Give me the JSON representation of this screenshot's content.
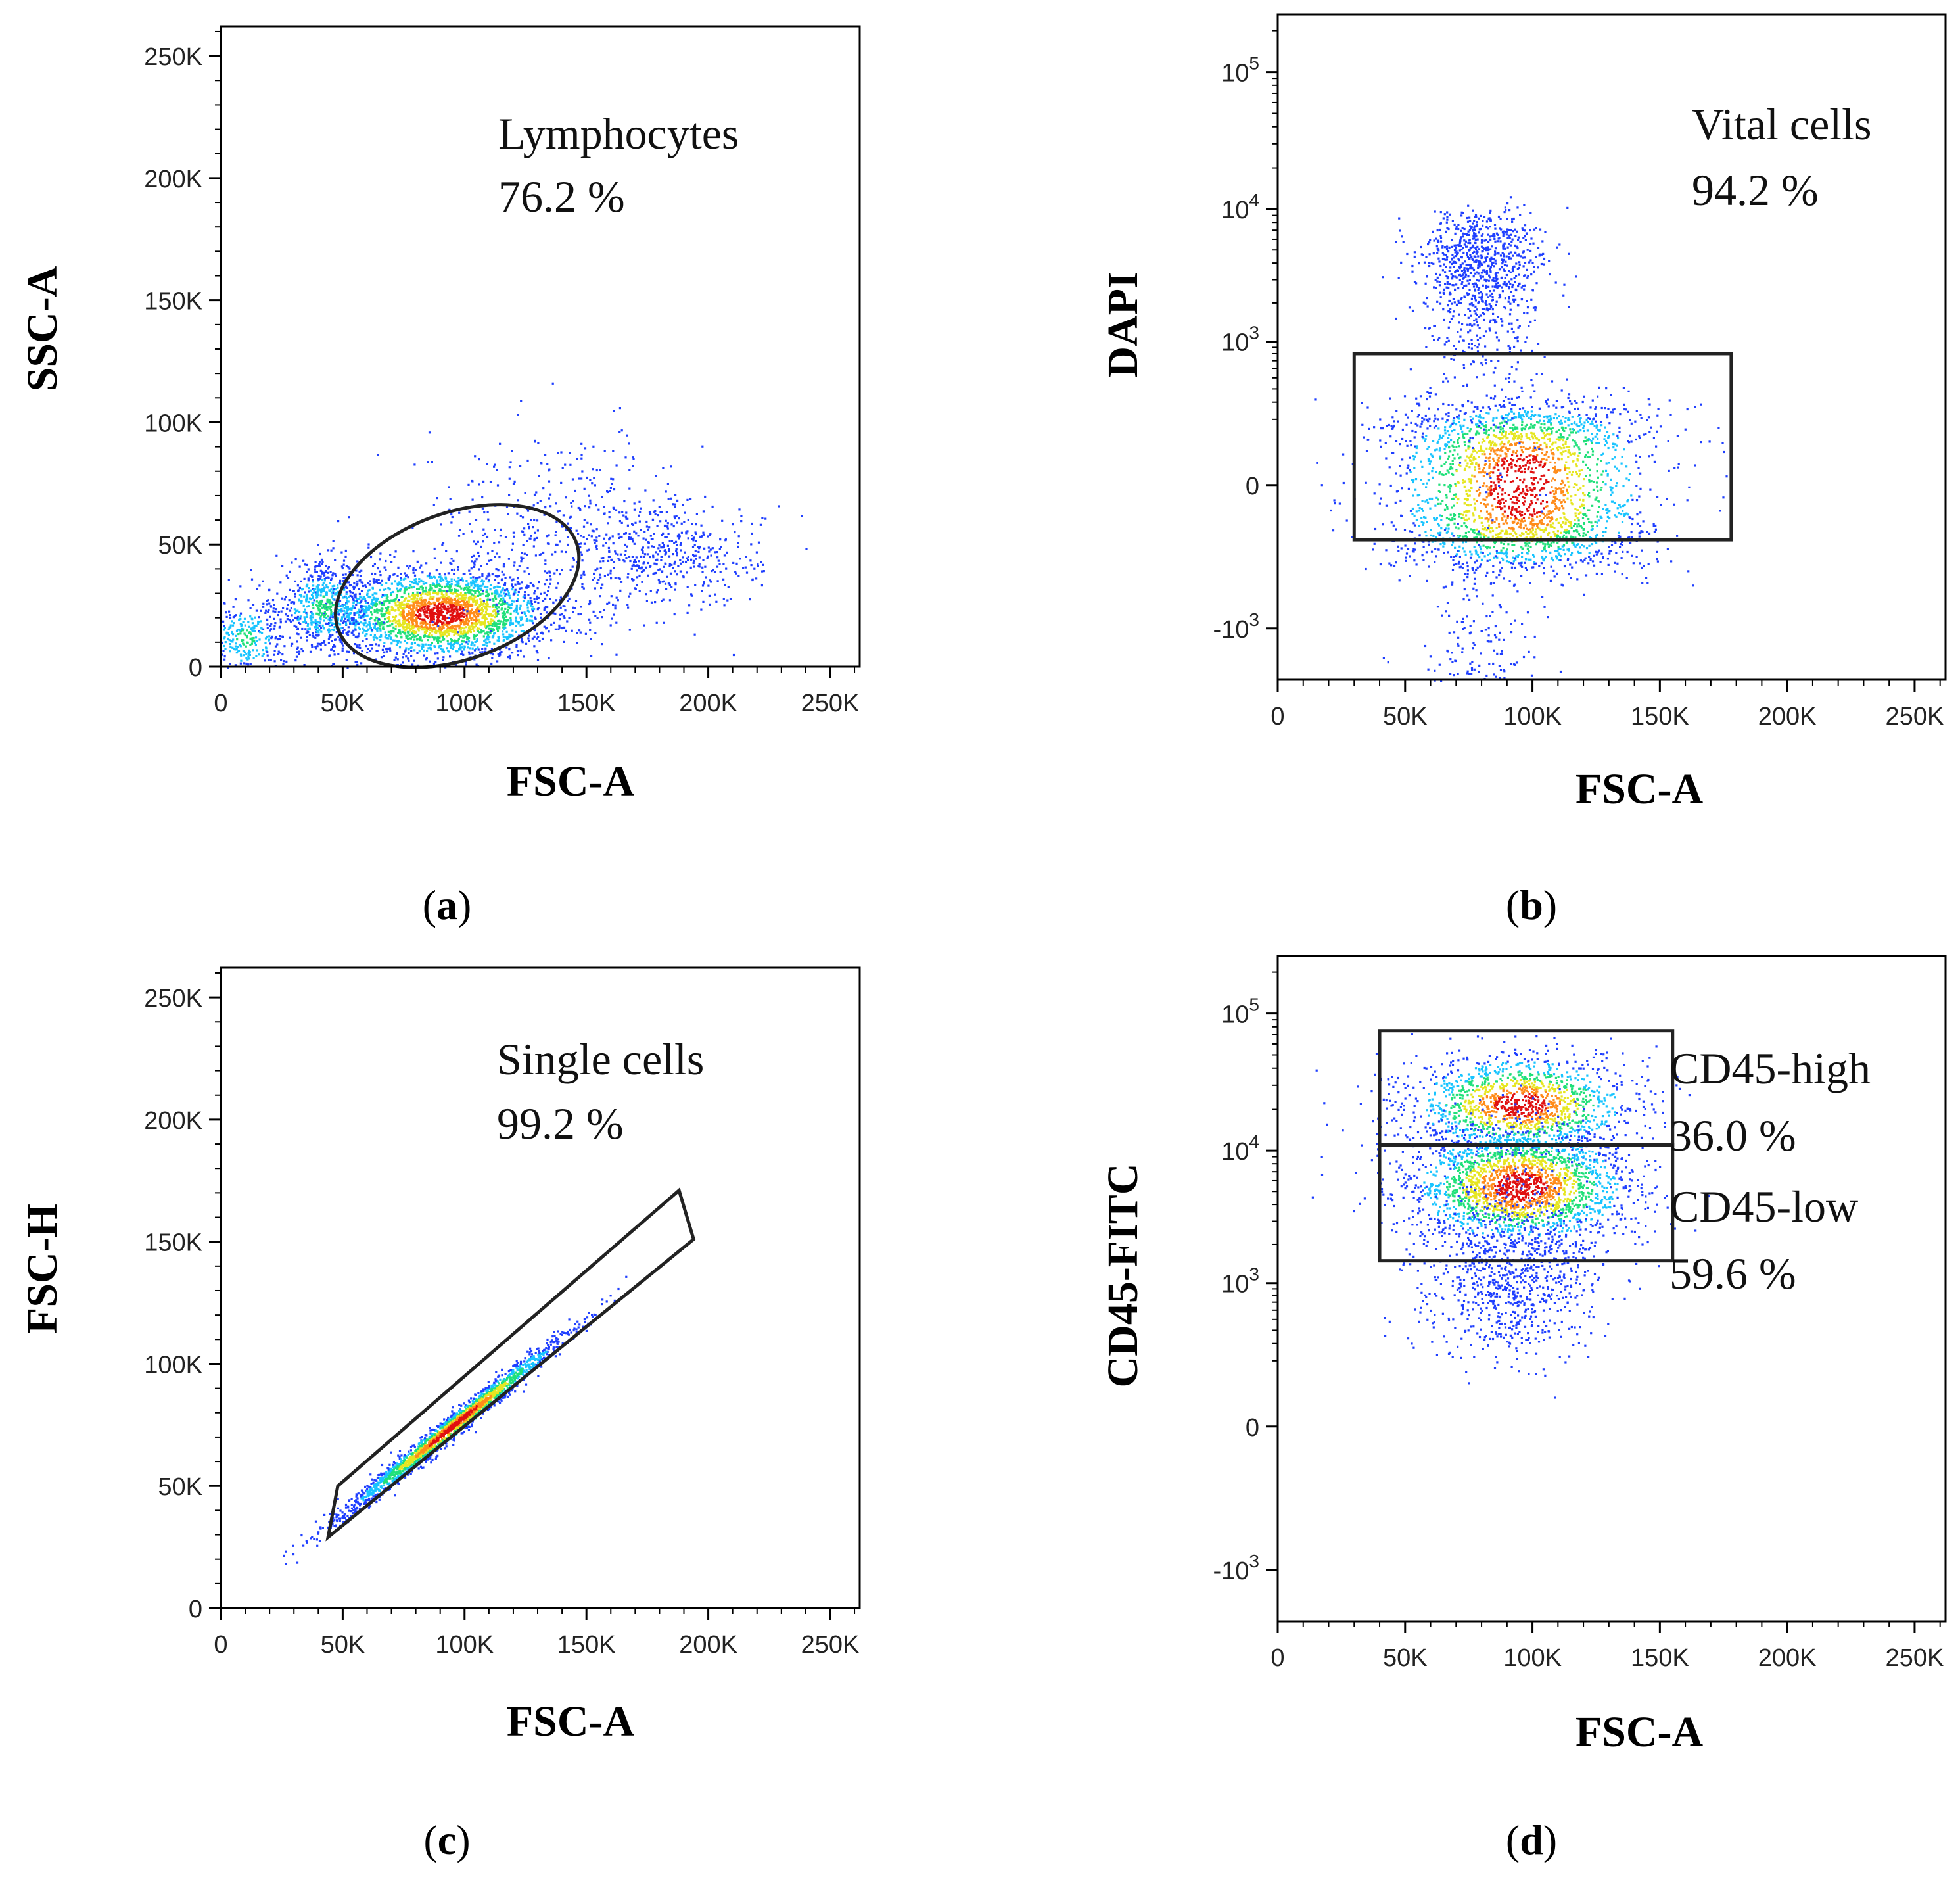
{
  "figure": {
    "panels": [
      {
        "label": "a",
        "xlabel": "FSC-A",
        "ylabel": "SSC-A",
        "gate_name": "Lymphocytes",
        "gate_percent": "76.2 %"
      },
      {
        "label": "b",
        "xlabel": "FSC-A",
        "ylabel": "DAPI",
        "gate_name": "Vital cells",
        "gate_percent": "94.2 %"
      },
      {
        "label": "c",
        "xlabel": "FSC-A",
        "ylabel": "FSC-H",
        "gate_name": "Single cells",
        "gate_percent": "99.2 %"
      },
      {
        "label": "d",
        "xlabel": "FSC-A",
        "ylabel": "CD45-FITC",
        "gate_name_1": "CD45-high",
        "gate_percent_1": "36.0 %",
        "gate_name_2": "CD45-low",
        "gate_percent_2": "59.6 %"
      }
    ]
  },
  "chart_data": [
    {
      "type": "scatter",
      "panel": "a",
      "xlabel": "FSC-A",
      "ylabel": "SSC-A",
      "xlim": [
        0,
        262144
      ],
      "ylim": [
        0,
        262144
      ],
      "x_ticks": [
        0,
        50000,
        100000,
        150000,
        200000,
        250000
      ],
      "x_tick_labels": [
        "0",
        "50K",
        "100K",
        "150K",
        "200K",
        "250K"
      ],
      "y_ticks": [
        0,
        50000,
        100000,
        150000,
        200000,
        250000
      ],
      "y_tick_labels": [
        "0",
        "50K",
        "100K",
        "150K",
        "200K",
        "250K"
      ],
      "colormap": [
        "#00008b",
        "#0000ff",
        "#00bfff",
        "#00ff7f",
        "#ffff00",
        "#ff7f00",
        "#ff0000"
      ],
      "clusters": [
        {
          "center": [
            90000,
            22000
          ],
          "spread": [
            22000,
            9000
          ],
          "count": 2600,
          "density": "high"
        },
        {
          "center": [
            42000,
            25000
          ],
          "spread": [
            10000,
            9000
          ],
          "count": 600,
          "density": "medium"
        },
        {
          "center": [
            10000,
            12000
          ],
          "spread": [
            8000,
            8000
          ],
          "count": 300,
          "density": "medium"
        },
        {
          "center": [
            185000,
            45000
          ],
          "spread": [
            18000,
            10000
          ],
          "count": 400,
          "density": "low"
        },
        {
          "center": [
            140000,
            55000
          ],
          "spread": [
            30000,
            20000
          ],
          "count": 500,
          "density": "low"
        }
      ],
      "gates": [
        {
          "name": "Lymphocytes",
          "percent": 76.2,
          "shape": "ellipse",
          "center": [
            97000,
            33000
          ],
          "rx": 52000,
          "ry": 30000,
          "rotation_deg": 20
        }
      ]
    },
    {
      "type": "scatter",
      "panel": "b",
      "xlabel": "FSC-A",
      "ylabel": "DAPI",
      "xlim": [
        0,
        262144
      ],
      "y_scale": "biexponential",
      "x_ticks": [
        0,
        50000,
        100000,
        150000,
        200000,
        250000
      ],
      "x_tick_labels": [
        "0",
        "50K",
        "100K",
        "150K",
        "200K",
        "250K"
      ],
      "y_ticks": [
        -1000,
        0,
        1000,
        10000,
        100000
      ],
      "y_tick_labels": [
        "-10^3",
        "0",
        "10^3",
        "10^4",
        "10^5"
      ],
      "clusters": [
        {
          "center": [
            95000,
            0
          ],
          "spread": [
            25000,
            150
          ],
          "count": 2500,
          "density": "high"
        },
        {
          "center": [
            80000,
            3000
          ],
          "spread": [
            12000,
            3000
          ],
          "count": 1200,
          "density": "low"
        }
      ],
      "gates": [
        {
          "name": "Vital cells",
          "percent": 94.2,
          "shape": "rectangle",
          "x": [
            30000,
            178000
          ],
          "y": [
            -150,
            800
          ]
        }
      ]
    },
    {
      "type": "scatter",
      "panel": "c",
      "xlabel": "FSC-A",
      "ylabel": "FSC-H",
      "xlim": [
        0,
        262144
      ],
      "ylim": [
        0,
        262144
      ],
      "x_ticks": [
        0,
        50000,
        100000,
        150000,
        200000,
        250000
      ],
      "x_tick_labels": [
        "0",
        "50K",
        "100K",
        "150K",
        "200K",
        "250K"
      ],
      "y_ticks": [
        0,
        50000,
        100000,
        150000,
        200000,
        250000
      ],
      "y_tick_labels": [
        "0",
        "50K",
        "100K",
        "150K",
        "200K",
        "250K"
      ],
      "clusters": [
        {
          "center": [
            95000,
            75000
          ],
          "spread": [
            22000,
            2500
          ],
          "count": 2200,
          "density": "high",
          "slope": 0.8
        }
      ],
      "gates": [
        {
          "name": "Single cells",
          "percent": 99.2,
          "shape": "polygon",
          "vertices": [
            [
              44000,
              29000
            ],
            [
              48000,
              50000
            ],
            [
              188000,
              171000
            ],
            [
              194000,
              151000
            ]
          ]
        }
      ]
    },
    {
      "type": "scatter",
      "panel": "d",
      "xlabel": "FSC-A",
      "ylabel": "CD45-FITC",
      "xlim": [
        0,
        262144
      ],
      "y_scale": "biexponential",
      "x_ticks": [
        0,
        50000,
        100000,
        150000,
        200000,
        250000
      ],
      "x_tick_labels": [
        "0",
        "50K",
        "100K",
        "150K",
        "200K",
        "250K"
      ],
      "y_ticks": [
        -1000,
        0,
        1000,
        10000,
        100000
      ],
      "y_tick_labels": [
        "-10^3",
        "0",
        "10^3",
        "10^4",
        "10^5"
      ],
      "clusters": [
        {
          "center": [
            95000,
            22000
          ],
          "spread": [
            22000,
            0.18
          ],
          "count": 1500,
          "density": "high"
        },
        {
          "center": [
            95000,
            5500
          ],
          "spread": [
            22000,
            0.22
          ],
          "count": 2200,
          "density": "high"
        },
        {
          "center": [
            90000,
            1200
          ],
          "spread": [
            18000,
            0.35
          ],
          "count": 900,
          "density": "low"
        }
      ],
      "gates": [
        {
          "name": "CD45-high",
          "percent": 36.0,
          "shape": "rectangle",
          "x": [
            40000,
            155000
          ],
          "y": [
            11000,
            75000
          ]
        },
        {
          "name": "CD45-low",
          "percent": 59.6,
          "shape": "rectangle",
          "x": [
            40000,
            155000
          ],
          "y": [
            1500,
            11000
          ]
        }
      ]
    }
  ]
}
